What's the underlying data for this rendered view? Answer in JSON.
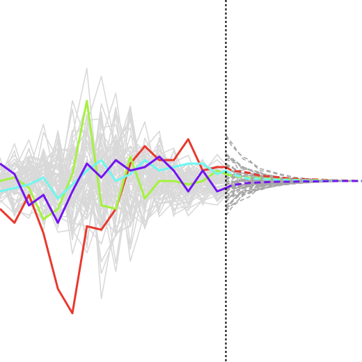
{
  "chart_data": {
    "type": "line",
    "title": "",
    "xlabel": "",
    "ylabel": "",
    "grid": false,
    "legend": "none",
    "axes_visible": false,
    "xlim": [
      0,
      25
    ],
    "ylim": [
      -0.52,
      0.52
    ],
    "split_x": 15.6,
    "colors": {
      "background": "#ffffff",
      "history_lines": "#d9d9d9",
      "forecast_lines": "#a6a6a6",
      "split_line": "#000000"
    },
    "background_history": {
      "line_count": 60,
      "x_range": [
        0,
        15.6
      ],
      "spread_range": [
        -0.5,
        0.5
      ],
      "note_style": "solid light gray"
    },
    "background_forecast": {
      "line_count": 60,
      "x_range": [
        15.6,
        25
      ],
      "style": "dashed gray, converging to about 0 at x=25"
    },
    "series": [
      {
        "color": "#e8392e",
        "history": {
          "x": [
            0,
            1,
            2,
            3,
            4,
            5,
            6,
            7,
            8,
            9,
            10,
            11,
            12,
            13,
            14,
            15,
            15.6
          ],
          "y": [
            -0.08,
            -0.12,
            -0.04,
            -0.15,
            -0.31,
            -0.38,
            -0.13,
            -0.14,
            -0.08,
            0.05,
            0.1,
            0.06,
            0.06,
            0.12,
            0.03,
            0.04,
            0.04
          ]
        },
        "forecast": {
          "x": [
            15.6,
            16,
            17,
            18,
            19,
            20,
            21,
            22,
            23,
            24,
            25
          ],
          "y": [
            0.04,
            0.03,
            0.025,
            0.015,
            0.012,
            0.007,
            0.005,
            0.004,
            0.002,
            0.001,
            0.0
          ]
        }
      },
      {
        "color": "#a4f23e",
        "history": {
          "x": [
            0,
            1,
            2,
            3,
            4,
            5,
            6,
            7,
            8,
            9,
            10,
            11,
            12,
            13,
            14,
            15,
            15.6
          ],
          "y": [
            0.0,
            0.01,
            -0.02,
            -0.11,
            -0.08,
            0.02,
            0.23,
            -0.07,
            -0.08,
            0.07,
            -0.05,
            0.0,
            0.0,
            -0.01,
            0.0,
            0.03,
            0.02
          ]
        },
        "forecast": {
          "x": [
            15.6,
            16,
            17,
            18,
            19,
            20,
            21,
            22,
            23,
            24,
            25
          ],
          "y": [
            0.02,
            0.015,
            0.01,
            0.008,
            0.005,
            0.004,
            0.002,
            0.002,
            0.001,
            0.0,
            0.0
          ]
        }
      },
      {
        "color": "#6ef7f0",
        "history": {
          "x": [
            0,
            1,
            2,
            3,
            4,
            5,
            6,
            7,
            8,
            9,
            10,
            11,
            12,
            13,
            14,
            15,
            15.6
          ],
          "y": [
            -0.03,
            -0.02,
            -0.01,
            0.01,
            -0.05,
            -0.01,
            0.03,
            0.06,
            0.0,
            0.02,
            0.06,
            0.03,
            0.04,
            0.05,
            0.05,
            0.02,
            0.03
          ]
        },
        "forecast": {
          "x": [
            15.6,
            16,
            17,
            18,
            19,
            20,
            21,
            22,
            23,
            24,
            25
          ],
          "y": [
            0.03,
            0.02,
            0.008,
            0.006,
            0.004,
            0.003,
            0.002,
            0.001,
            0.001,
            0.0,
            0.0
          ]
        }
      },
      {
        "color": "#7214f0",
        "history": {
          "x": [
            0,
            1,
            2,
            3,
            4,
            5,
            6,
            7,
            8,
            9,
            10,
            11,
            12,
            13,
            14,
            15,
            15.6
          ],
          "y": [
            0.05,
            0.02,
            -0.07,
            -0.04,
            -0.12,
            -0.03,
            0.05,
            0.01,
            0.06,
            0.03,
            0.04,
            0.07,
            0.03,
            -0.03,
            0.03,
            -0.03,
            -0.02
          ]
        },
        "forecast": {
          "x": [
            15.6,
            16,
            17,
            18,
            19,
            20,
            21,
            22,
            23,
            24,
            25
          ],
          "y": [
            -0.02,
            -0.012,
            -0.006,
            -0.004,
            -0.002,
            -0.002,
            -0.001,
            -0.001,
            0.0,
            0.0,
            0.0
          ]
        }
      }
    ]
  }
}
